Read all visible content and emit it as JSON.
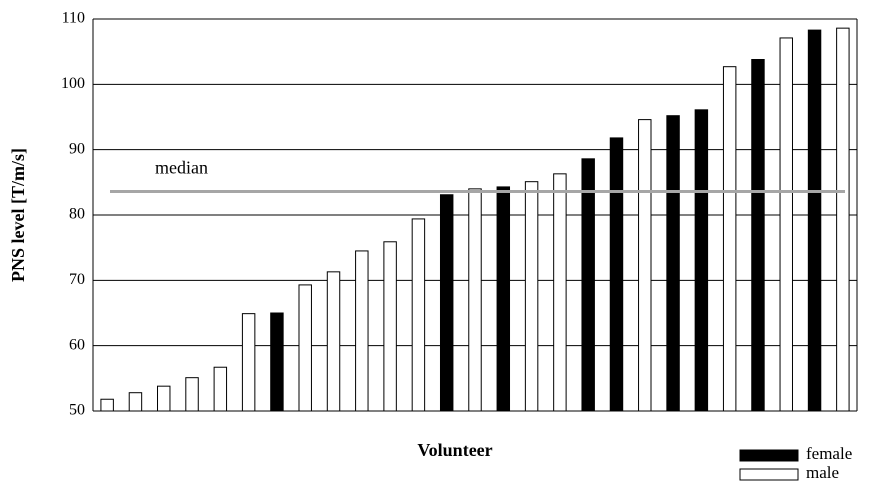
{
  "chart_data": {
    "type": "bar",
    "x_label": "Volunteer",
    "y_label": "PNS level [T/m/s]",
    "categories": [
      null,
      null,
      null,
      null,
      null,
      null,
      null,
      null,
      null,
      null,
      null,
      null,
      null,
      null,
      null,
      null,
      null,
      null,
      null,
      null,
      null,
      null,
      null,
      null,
      null,
      null,
      null
    ],
    "series": [
      {
        "name": "female",
        "color": "#000000",
        "values": [
          null,
          null,
          null,
          null,
          null,
          null,
          65,
          null,
          null,
          null,
          null,
          null,
          83.1,
          null,
          84.3,
          null,
          null,
          88.6,
          91.8,
          null,
          95.2,
          96.1,
          null,
          103.8,
          null,
          108.3,
          null
        ]
      },
      {
        "name": "male",
        "color": "#ffffff",
        "values": [
          51.8,
          52.8,
          53.8,
          55.1,
          56.7,
          64.9,
          null,
          69.3,
          71.3,
          74.5,
          75.9,
          79.4,
          null,
          84,
          null,
          85.1,
          86.3,
          null,
          null,
          94.6,
          null,
          null,
          102.7,
          null,
          107.1,
          null,
          108.6
        ]
      }
    ],
    "reference_line": {
      "label": "median",
      "value": 83.6,
      "color": "#a6a6a6"
    },
    "ylim": [
      50,
      110
    ],
    "yticks": [
      50,
      60,
      70,
      80,
      90,
      100,
      110
    ],
    "grid": true,
    "legend": "bottom-right"
  }
}
